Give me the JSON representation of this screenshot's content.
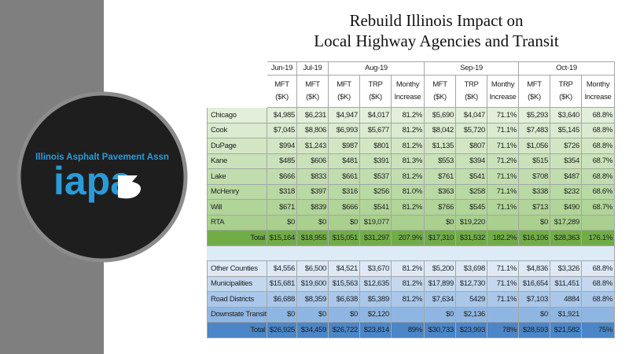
{
  "logo": {
    "name": "Illinois Asphalt Pavement Assn",
    "acronym": "iapa"
  },
  "title": [
    "Rebuild Illinois Impact on",
    "Local Highway Agencies and Transit"
  ],
  "table": {
    "groups": [
      {
        "month": "Jun-19",
        "columns": [
          [
            "MFT",
            "($K)"
          ]
        ]
      },
      {
        "month": "Jul-19",
        "columns": [
          [
            "MFT",
            "($K)"
          ]
        ]
      },
      {
        "month": "Aug-19",
        "columns": [
          [
            "MFT",
            "($K)"
          ],
          [
            "TRP",
            "($K)"
          ],
          [
            "Monthy",
            "Increase"
          ]
        ]
      },
      {
        "month": "Sep-19",
        "columns": [
          [
            "MFT",
            "($K)"
          ],
          [
            "TRP",
            "($K)"
          ],
          [
            "Monthy",
            "Increase"
          ]
        ]
      },
      {
        "month": "Oct-19",
        "columns": [
          [
            "MFT",
            "($K)"
          ],
          [
            "TRP",
            "($K)"
          ],
          [
            "Monthy",
            "Increase"
          ]
        ]
      }
    ],
    "sections": [
      {
        "rows": [
          {
            "label": "Chicago",
            "cells": [
              "$4,985",
              "$6,231",
              "$4,947",
              "$4,017",
              "81.2%",
              "$5,690",
              "$4,047",
              "71.1%",
              "$5,293",
              "$3,640",
              "68.8%"
            ]
          },
          {
            "label": "Cook",
            "cells": [
              "$7,045",
              "$8,806",
              "$6,993",
              "$5,677",
              "81.2%",
              "$8,042",
              "$5,720",
              "71.1%",
              "$7,483",
              "$5,145",
              "68.8%"
            ]
          },
          {
            "label": "DuPage",
            "cells": [
              "$994",
              "$1,243",
              "$987",
              "$801",
              "81.2%",
              "$1,135",
              "$807",
              "71.1%",
              "$1,056",
              "$726",
              "68.8%"
            ]
          },
          {
            "label": "Kane",
            "cells": [
              "$485",
              "$606",
              "$481",
              "$391",
              "81.3%",
              "$553",
              "$394",
              "71.2%",
              "$515",
              "$354",
              "68.7%"
            ]
          },
          {
            "label": "Lake",
            "cells": [
              "$666",
              "$833",
              "$661",
              "$537",
              "81.2%",
              "$761",
              "$541",
              "71.1%",
              "$708",
              "$487",
              "68.8%"
            ]
          },
          {
            "label": "McHenry",
            "cells": [
              "$318",
              "$397",
              "$316",
              "$256",
              "81.0%",
              "$363",
              "$258",
              "71.1%",
              "$338",
              "$232",
              "68.6%"
            ]
          },
          {
            "label": "Will",
            "cells": [
              "$671",
              "$839",
              "$666",
              "$541",
              "81.2%",
              "$766",
              "$545",
              "71.1%",
              "$713",
              "$490",
              "68.7%"
            ]
          },
          {
            "label": "RTA",
            "cells": [
              "$0",
              "$0",
              "$0",
              "$19,077",
              null,
              "$0",
              "$19,220",
              null,
              "$0",
              "$17,289",
              null
            ]
          },
          {
            "label": "Total",
            "cells": [
              "$15,164",
              "$18,955",
              "$15,051",
              "$31,297",
              "207.9%",
              "$17,310",
              "$31,532",
              "182.2%",
              "$16,106",
              "$28,363",
              "176.1%"
            ]
          }
        ]
      },
      {
        "rows": [
          {
            "label": "Other Counties",
            "cells": [
              "$4,556",
              "$6,500",
              "$4,521",
              "$3,670",
              "81.2%",
              "$5,200",
              "$3,698",
              "71.1%",
              "$4,836",
              "$3,326",
              "68.8%"
            ]
          },
          {
            "label": "Municipalities",
            "cells": [
              "$15,681",
              "$19,600",
              "$15,563",
              "$12,635",
              "81.2%",
              "$17,899",
              "$12,730",
              "71.1%",
              "$16,654",
              "$11,451",
              "68.8%"
            ]
          },
          {
            "label": "Road Districts",
            "cells": [
              "$6,688",
              "$8,359",
              "$6,638",
              "$5,389",
              "81.2%",
              "$7,634",
              "5429",
              "71.1%",
              "$7,103",
              "4884",
              "68.8%"
            ]
          },
          {
            "label": "Downstate Transit",
            "cells": [
              "$0",
              "$0",
              "$0",
              "$2,120",
              null,
              "$0",
              "$2,136",
              null,
              "$0",
              "$1,921",
              null
            ]
          },
          {
            "label": "Total",
            "cells": [
              "$26,925",
              "$34,459",
              "$26,722",
              "$23,814",
              "89%",
              "$30,733",
              "$23,993",
              "78%",
              "$28,593",
              "$21,582",
              "75%"
            ]
          }
        ]
      }
    ]
  }
}
